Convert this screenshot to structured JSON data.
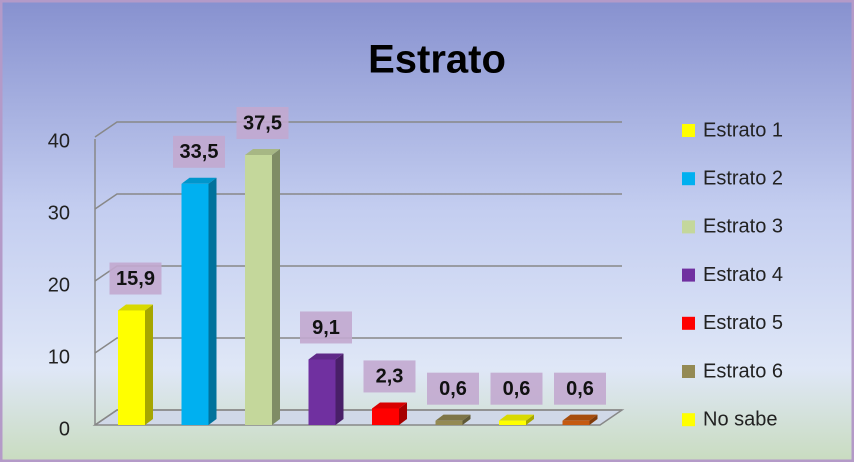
{
  "chart_data": {
    "type": "bar",
    "title": "Estrato",
    "categories": [
      "Estrato 1",
      "Estrato 2",
      "Estrato 3",
      "Estrato 4",
      "Estrato 5",
      "Estrato 6",
      "No sabe",
      null
    ],
    "values": [
      15.9,
      33.5,
      37.5,
      9.1,
      2.3,
      0.6,
      0.6,
      0.6
    ],
    "value_labels": [
      "15,9",
      "33,5",
      "37,5",
      "9,1",
      "2,3",
      "0,6",
      "0,6",
      "0,6"
    ],
    "colors": [
      "#ffff00",
      "#00b0f0",
      "#c4d79b",
      "#7030a0",
      "#ff0000",
      "#948a54",
      "#ffff00",
      "#c55a11"
    ],
    "ylim": [
      0,
      40
    ],
    "yticks": [
      0,
      10,
      20,
      30,
      40
    ],
    "grid": true,
    "legend": "right"
  }
}
